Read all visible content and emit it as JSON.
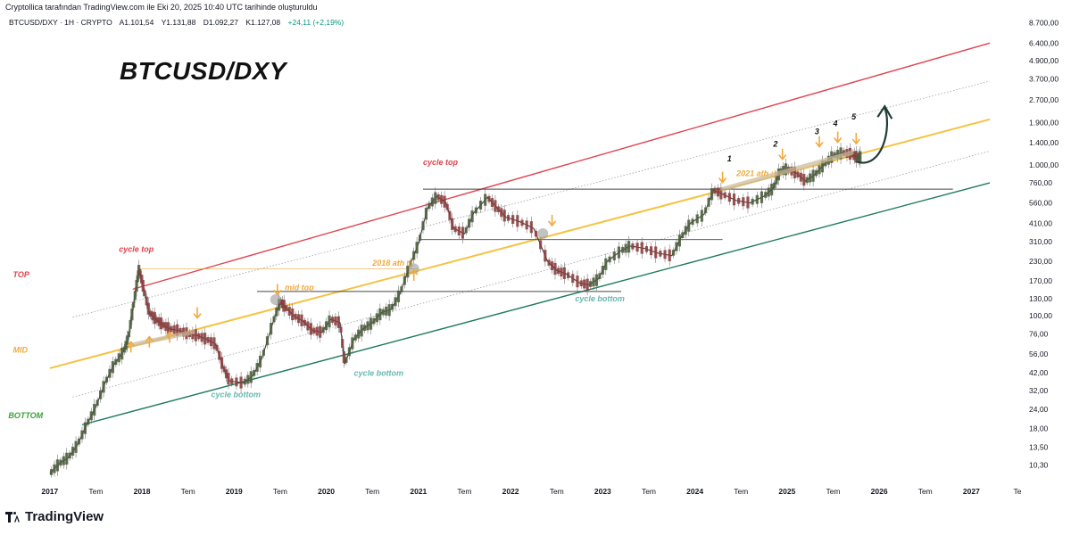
{
  "header": {
    "watermark": "Cryptollica tarafından TradingView.com ile Eki 20, 2025 10:40 UTC tarihinde oluşturuldu",
    "symbol": "BTCUSD/DXY · 1H · CRYPTO",
    "open": "A1.101,54",
    "high": "Y1.131,88",
    "low": "D1.092,27",
    "close": "K1.127,08",
    "change": "+24,11 (+2,19%)"
  },
  "title": "BTCUSD/DXY",
  "brand": "TradingView",
  "colors": {
    "top_line": "#e0424e",
    "mid_line": "#f5c242",
    "bottom_line": "#1e7b5c",
    "arrow": "#f2a93b",
    "cycle_top_text": "#e0424e",
    "cycle_bottom_text": "#66b8b0",
    "mid_text": "#f2a93b",
    "bottom_text": "#3aa03a",
    "candle_up": "#4a5a3a",
    "candle_down": "#8a3a3a"
  },
  "chart_data": {
    "type": "line",
    "scale": "log",
    "x_axis": {
      "start": 2017.0,
      "end": 2027.5,
      "ticks": [
        {
          "t": 2017.0,
          "label": "2017"
        },
        {
          "t": 2017.5,
          "label": "Tem"
        },
        {
          "t": 2018.0,
          "label": "2018"
        },
        {
          "t": 2018.5,
          "label": "Tem"
        },
        {
          "t": 2019.0,
          "label": "2019"
        },
        {
          "t": 2019.5,
          "label": "Tem"
        },
        {
          "t": 2020.0,
          "label": "2020"
        },
        {
          "t": 2020.5,
          "label": "Tem"
        },
        {
          "t": 2021.0,
          "label": "2021"
        },
        {
          "t": 2021.5,
          "label": "Tem"
        },
        {
          "t": 2022.0,
          "label": "2022"
        },
        {
          "t": 2022.5,
          "label": "Tem"
        },
        {
          "t": 2023.0,
          "label": "2023"
        },
        {
          "t": 2023.5,
          "label": "Tem"
        },
        {
          "t": 2024.0,
          "label": "2024"
        },
        {
          "t": 2024.5,
          "label": "Tem"
        },
        {
          "t": 2025.0,
          "label": "2025"
        },
        {
          "t": 2025.5,
          "label": "Tem"
        },
        {
          "t": 2026.0,
          "label": "2026"
        },
        {
          "t": 2026.5,
          "label": "Tem"
        },
        {
          "t": 2027.0,
          "label": "2027"
        },
        {
          "t": 2027.5,
          "label": "Te"
        }
      ]
    },
    "y_axis": {
      "ticks": [
        {
          "v": 10.3,
          "label": "10,30"
        },
        {
          "v": 13.5,
          "label": "13,50"
        },
        {
          "v": 18,
          "label": "18,00"
        },
        {
          "v": 24,
          "label": "24,00"
        },
        {
          "v": 32,
          "label": "32,00"
        },
        {
          "v": 42,
          "label": "42,00"
        },
        {
          "v": 56,
          "label": "56,00"
        },
        {
          "v": 76,
          "label": "76,00"
        },
        {
          "v": 100,
          "label": "100,00"
        },
        {
          "v": 130,
          "label": "130,00"
        },
        {
          "v": 170,
          "label": "170,00"
        },
        {
          "v": 230,
          "label": "230,00"
        },
        {
          "v": 310,
          "label": "310,00"
        },
        {
          "v": 410,
          "label": "410,00"
        },
        {
          "v": 560,
          "label": "560,00"
        },
        {
          "v": 760,
          "label": "760,00"
        },
        {
          "v": 1000,
          "label": "1.000,00"
        },
        {
          "v": 1400,
          "label": "1.400,00"
        },
        {
          "v": 1900,
          "label": "1.900,00"
        },
        {
          "v": 2700,
          "label": "2.700,00"
        },
        {
          "v": 3700,
          "label": "3.700,00"
        },
        {
          "v": 4900,
          "label": "4.900,00"
        },
        {
          "v": 6400,
          "label": "6.400,00"
        },
        {
          "v": 8700,
          "label": "8.700,00"
        }
      ]
    },
    "price": [
      [
        2017.0,
        9.0
      ],
      [
        2017.1,
        10.5
      ],
      [
        2017.2,
        11.5
      ],
      [
        2017.3,
        14.0
      ],
      [
        2017.4,
        19.0
      ],
      [
        2017.5,
        25.0
      ],
      [
        2017.6,
        36.0
      ],
      [
        2017.7,
        48.0
      ],
      [
        2017.8,
        58.0
      ],
      [
        2017.85,
        70.0
      ],
      [
        2017.9,
        110.0
      ],
      [
        2017.95,
        170.0
      ],
      [
        2017.97,
        205.0
      ],
      [
        2018.02,
        150.0
      ],
      [
        2018.08,
        105.0
      ],
      [
        2018.15,
        95.0
      ],
      [
        2018.22,
        88.0
      ],
      [
        2018.3,
        82.0
      ],
      [
        2018.4,
        80.0
      ],
      [
        2018.5,
        76.0
      ],
      [
        2018.6,
        74.0
      ],
      [
        2018.7,
        70.0
      ],
      [
        2018.8,
        65.0
      ],
      [
        2018.88,
        46.0
      ],
      [
        2018.95,
        37.0
      ],
      [
        2019.1,
        36.0
      ],
      [
        2019.2,
        40.0
      ],
      [
        2019.3,
        52.0
      ],
      [
        2019.42,
        90.0
      ],
      [
        2019.5,
        125.0
      ],
      [
        2019.55,
        115.0
      ],
      [
        2019.65,
        100.0
      ],
      [
        2019.75,
        92.0
      ],
      [
        2019.85,
        80.0
      ],
      [
        2019.95,
        78.0
      ],
      [
        2020.05,
        95.0
      ],
      [
        2020.15,
        90.0
      ],
      [
        2020.2,
        48.0
      ],
      [
        2020.3,
        70.0
      ],
      [
        2020.4,
        82.0
      ],
      [
        2020.5,
        90.0
      ],
      [
        2020.6,
        105.0
      ],
      [
        2020.7,
        110.0
      ],
      [
        2020.8,
        140.0
      ],
      [
        2020.9,
        210.0
      ],
      [
        2021.0,
        300.0
      ],
      [
        2021.1,
        520.0
      ],
      [
        2021.2,
        620.0
      ],
      [
        2021.3,
        560.0
      ],
      [
        2021.38,
        380.0
      ],
      [
        2021.5,
        350.0
      ],
      [
        2021.6,
        480.0
      ],
      [
        2021.75,
        610.0
      ],
      [
        2021.85,
        520.0
      ],
      [
        2021.95,
        450.0
      ],
      [
        2022.1,
        420.0
      ],
      [
        2022.25,
        380.0
      ],
      [
        2022.4,
        230.0
      ],
      [
        2022.5,
        200.0
      ],
      [
        2022.6,
        190.0
      ],
      [
        2022.75,
        165.0
      ],
      [
        2022.85,
        160.0
      ],
      [
        2022.95,
        175.0
      ],
      [
        2023.05,
        230.0
      ],
      [
        2023.2,
        270.0
      ],
      [
        2023.3,
        290.0
      ],
      [
        2023.45,
        280.0
      ],
      [
        2023.6,
        260.0
      ],
      [
        2023.75,
        250.0
      ],
      [
        2023.85,
        330.0
      ],
      [
        2023.95,
        410.0
      ],
      [
        2024.1,
        470.0
      ],
      [
        2024.2,
        680.0
      ],
      [
        2024.3,
        640.0
      ],
      [
        2024.45,
        580.0
      ],
      [
        2024.6,
        560.0
      ],
      [
        2024.75,
        620.0
      ],
      [
        2024.85,
        700.0
      ],
      [
        2024.92,
        900.0
      ],
      [
        2025.0,
        940.0
      ],
      [
        2025.1,
        880.0
      ],
      [
        2025.2,
        780.0
      ],
      [
        2025.3,
        860.0
      ],
      [
        2025.4,
        1000.0
      ],
      [
        2025.5,
        1150.0
      ],
      [
        2025.6,
        1200.0
      ],
      [
        2025.7,
        1180.0
      ],
      [
        2025.76,
        1120.0
      ],
      [
        2025.8,
        1127.08
      ]
    ],
    "lines": [
      {
        "name": "top",
        "from": [
          2017.9,
          150
        ],
        "to": [
          2027.2,
          6400
        ]
      },
      {
        "name": "mid",
        "from": [
          2017.0,
          45
        ],
        "to": [
          2027.2,
          2000
        ]
      },
      {
        "name": "bottom",
        "from": [
          2017.35,
          19
        ],
        "to": [
          2027.2,
          760
        ]
      }
    ],
    "horizontal_levels": [
      {
        "value": 205,
        "from": 2017.97,
        "to": 2021.0
      },
      {
        "value": 145,
        "from": 2019.25,
        "to": 2023.2
      },
      {
        "value": 690,
        "from": 2021.05,
        "to": 2026.8
      },
      {
        "value": 320,
        "from": 2021.0,
        "to": 2024.3
      }
    ],
    "annotations": [
      {
        "text": "BTCUSD/DXY",
        "kind": "title"
      },
      {
        "text": "cycle top",
        "t": 2017.75,
        "v": 265,
        "kind": "top"
      },
      {
        "text": "cycle top",
        "t": 2021.05,
        "v": 1000,
        "kind": "top"
      },
      {
        "text": "TOP",
        "t": 2016.6,
        "v": 180,
        "kind": "top"
      },
      {
        "text": "MID",
        "t": 2016.6,
        "v": 57,
        "kind": "mid"
      },
      {
        "text": "BOTTOM",
        "t": 2016.55,
        "v": 21,
        "kind": "bottom"
      },
      {
        "text": "mid top",
        "t": 2019.55,
        "v": 148,
        "kind": "mid"
      },
      {
        "text": "2018 ath :)",
        "t": 2020.5,
        "v": 215,
        "kind": "mid"
      },
      {
        "text": "2021 ath :)",
        "t": 2024.45,
        "v": 840,
        "kind": "mid"
      },
      {
        "text": "cycle bottom",
        "t": 2018.75,
        "v": 29,
        "kind": "bottom"
      },
      {
        "text": "cycle bottom",
        "t": 2020.3,
        "v": 40,
        "kind": "bottom"
      },
      {
        "text": "cycle bottom",
        "t": 2022.7,
        "v": 125,
        "kind": "bottom"
      },
      {
        "text": "1",
        "t": 2024.35,
        "v": 1050,
        "kind": "count"
      },
      {
        "text": "2",
        "t": 2024.85,
        "v": 1320,
        "kind": "count"
      },
      {
        "text": "3",
        "t": 2025.3,
        "v": 1600,
        "kind": "count"
      },
      {
        "text": "4",
        "t": 2025.5,
        "v": 1800,
        "kind": "count"
      },
      {
        "text": "5",
        "t": 2025.7,
        "v": 2000,
        "kind": "count"
      }
    ],
    "up_arrows": [
      {
        "t": 2017.88,
        "v": 62
      },
      {
        "t": 2018.08,
        "v": 67
      },
      {
        "t": 2018.3,
        "v": 72
      },
      {
        "t": 2020.95,
        "v": 185
      }
    ],
    "down_arrows": [
      {
        "t": 2018.6,
        "v": 105
      },
      {
        "t": 2019.47,
        "v": 150
      },
      {
        "t": 2022.45,
        "v": 430
      },
      {
        "t": 2024.3,
        "v": 830
      },
      {
        "t": 2024.95,
        "v": 1180
      },
      {
        "t": 2025.35,
        "v": 1430
      },
      {
        "t": 2025.55,
        "v": 1530
      },
      {
        "t": 2025.75,
        "v": 1500
      }
    ]
  }
}
